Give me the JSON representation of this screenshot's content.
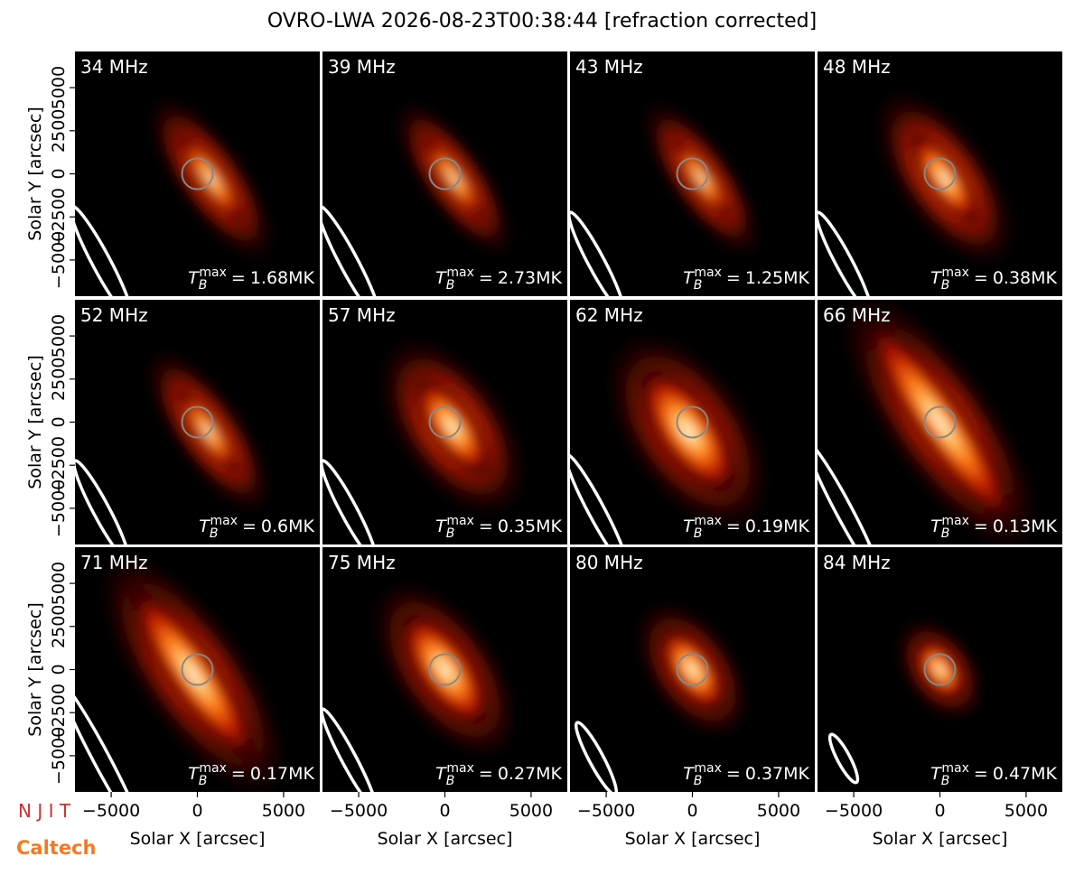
{
  "title": "OVRO-LWA 2026-08-23T00:38:44 [refraction corrected]",
  "xlabel": "Solar X [arcsec]",
  "ylabel": "Solar Y [arcsec]",
  "xlim": [
    -7100,
    7100
  ],
  "ylim": [
    -7100,
    7100
  ],
  "xticks": [
    {
      "value": -5000,
      "label": "−5000"
    },
    0,
    5000
  ],
  "yticks": [
    {
      "value": -5000,
      "label": "−5000"
    },
    {
      "value": -2500,
      "label": "−2500"
    },
    0,
    2500,
    5000
  ],
  "tb_symbol": "T",
  "tb_sub": "B",
  "tb_sup": "max",
  "tb_eq": "=",
  "logos": [
    "N J I T",
    "Caltech"
  ],
  "chart_data": [
    {
      "type": "image",
      "label": "34 MHz",
      "tb_max": 1.68,
      "value_labels": "1.68MK"
    },
    {
      "type": "image",
      "label": "39 MHz",
      "tb_max": 2.73,
      "value_labels": "2.73MK"
    },
    {
      "type": "image",
      "label": "43 MHz",
      "tb_max": 1.25,
      "value_labels": "1.25MK"
    },
    {
      "type": "image",
      "label": "48 MHz",
      "tb_max": 0.38,
      "value_labels": "0.38MK"
    },
    {
      "type": "image",
      "label": "52 MHz",
      "tb_max": 0.6,
      "value_labels": "0.6MK"
    },
    {
      "type": "image",
      "label": "57 MHz",
      "tb_max": 0.35,
      "value_labels": "0.35MK"
    },
    {
      "type": "image",
      "label": "62 MHz",
      "tb_max": 0.19,
      "value_labels": "0.19MK"
    },
    {
      "type": "image",
      "label": "66 MHz",
      "tb_max": 0.13,
      "value_labels": "0.13MK"
    },
    {
      "type": "image",
      "label": "71 MHz",
      "tb_max": 0.17,
      "value_labels": "0.17MK"
    },
    {
      "type": "image",
      "label": "75 MHz",
      "tb_max": 0.27,
      "value_labels": "0.27MK"
    },
    {
      "type": "image",
      "label": "80 MHz",
      "tb_max": 0.37,
      "value_labels": "0.37MK"
    },
    {
      "type": "image",
      "label": "84 MHz",
      "tb_max": 0.47,
      "value_labels": "0.47MK"
    }
  ]
}
